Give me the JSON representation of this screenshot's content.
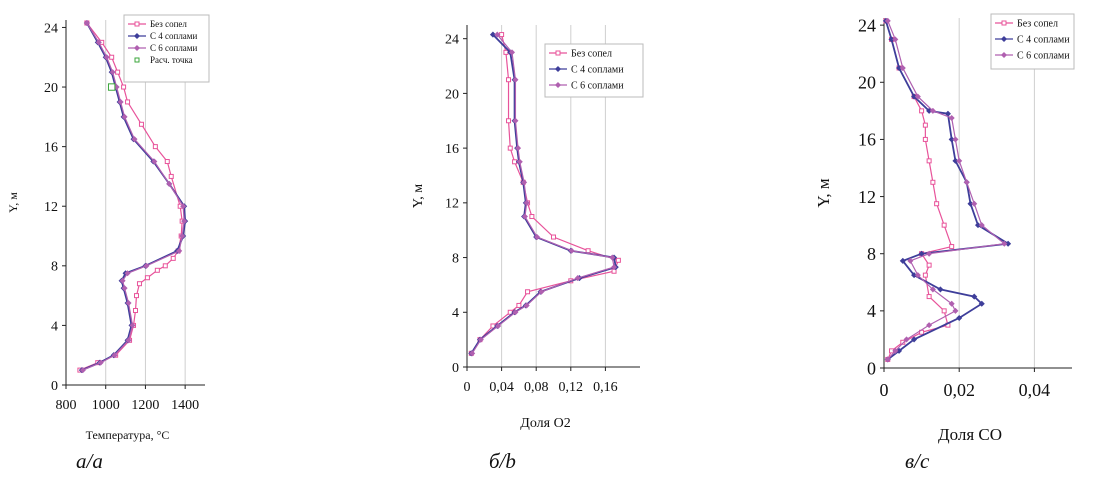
{
  "chart_data": [
    {
      "type": "line",
      "panel": "a",
      "caption": "а/a",
      "xlabel": "Температура, °С",
      "ylabel": "Y, м",
      "xlim": [
        800,
        1500
      ],
      "ylim": [
        0,
        24.5
      ],
      "xticks": [
        800,
        1000,
        1200,
        1400
      ],
      "yticks": [
        0,
        4,
        8,
        12,
        16,
        20,
        24
      ],
      "xtick_labels": [
        "800",
        "1000",
        "1200",
        "1400"
      ],
      "ytick_labels": [
        "0",
        "4",
        "8",
        "12",
        "16",
        "20",
        "24"
      ],
      "grid": "vertical",
      "legend_position": "top-right",
      "series": [
        {
          "name": "Без сопел",
          "color": "#e8539a",
          "marker": "square-open",
          "x": [
            905,
            980,
            1030,
            1060,
            1090,
            1110,
            1180,
            1250,
            1310,
            1330,
            1375,
            1385,
            1380,
            1365,
            1340,
            1300,
            1260,
            1210,
            1170,
            1155,
            1150,
            1140,
            1120,
            1050,
            960,
            870
          ],
          "y": [
            24.3,
            23.0,
            22.0,
            21.0,
            20.0,
            19.0,
            17.5,
            16.0,
            15.0,
            14.0,
            12.0,
            11.0,
            10.0,
            9.0,
            8.5,
            8.0,
            7.7,
            7.2,
            6.8,
            6.0,
            5.0,
            4.0,
            3.0,
            2.0,
            1.5,
            1.0
          ]
        },
        {
          "name": "С 4 соплами",
          "color": "#3e3e9a",
          "marker": "diamond-filled",
          "x": [
            905,
            960,
            1000,
            1030,
            1050,
            1070,
            1090,
            1140,
            1240,
            1320,
            1395,
            1400,
            1390,
            1360,
            1200,
            1100,
            1080,
            1090,
            1110,
            1130,
            1110,
            1040,
            970,
            880
          ],
          "y": [
            24.3,
            23.0,
            22.0,
            21.0,
            20.0,
            19.0,
            18.0,
            16.5,
            15.0,
            13.5,
            12.0,
            11.0,
            10.0,
            9.0,
            8.0,
            7.5,
            7.0,
            6.5,
            5.5,
            4.0,
            3.0,
            2.0,
            1.5,
            1.0
          ]
        },
        {
          "name": "С 6 соплами",
          "color": "#b060b0",
          "marker": "diamond-filled",
          "x": [
            905,
            965,
            1005,
            1035,
            1055,
            1075,
            1095,
            1145,
            1245,
            1320,
            1390,
            1395,
            1385,
            1370,
            1205,
            1110,
            1085,
            1095,
            1115,
            1135,
            1115,
            1045,
            975,
            885
          ],
          "y": [
            24.3,
            23.0,
            22.0,
            21.0,
            20.0,
            19.0,
            18.0,
            16.5,
            15.0,
            13.5,
            12.0,
            11.0,
            10.0,
            9.0,
            8.0,
            7.5,
            7.0,
            6.5,
            5.5,
            4.0,
            3.0,
            2.0,
            1.5,
            1.0
          ]
        },
        {
          "name": "Расч. точка",
          "color": "#3aa63a",
          "marker": "square-open",
          "style": "points",
          "x": [
            1030
          ],
          "y": [
            20.0
          ]
        }
      ]
    },
    {
      "type": "line",
      "panel": "b",
      "caption": "б/b",
      "xlabel": "Доля О2",
      "ylabel": "Y, м",
      "xlim": [
        0,
        0.2
      ],
      "ylim": [
        0,
        25
      ],
      "xticks": [
        0,
        0.04,
        0.08,
        0.12,
        0.16
      ],
      "yticks": [
        0,
        4,
        8,
        12,
        16,
        20,
        24
      ],
      "xtick_labels": [
        "0",
        "0,04",
        "0,08",
        "0,12",
        "0,16"
      ],
      "ytick_labels": [
        "0",
        "4",
        "8",
        "12",
        "16",
        "20",
        "24"
      ],
      "grid": "vertical",
      "legend_position": "top-right",
      "series": [
        {
          "name": "Без сопел",
          "color": "#e8539a",
          "marker": "square-open",
          "x": [
            0.04,
            0.045,
            0.048,
            0.048,
            0.05,
            0.055,
            0.065,
            0.07,
            0.075,
            0.1,
            0.14,
            0.175,
            0.17,
            0.12,
            0.07,
            0.06,
            0.05,
            0.03,
            0.015,
            0.005
          ],
          "y": [
            24.3,
            23.0,
            21.0,
            18.0,
            16.0,
            15.0,
            13.5,
            12.0,
            11.0,
            9.5,
            8.5,
            7.8,
            7.0,
            6.3,
            5.5,
            4.5,
            4.0,
            3.0,
            2.0,
            1.0
          ]
        },
        {
          "name": "С 4 соплами",
          "color": "#3e3e9a",
          "marker": "diamond-filled",
          "x": [
            0.03,
            0.05,
            0.055,
            0.055,
            0.058,
            0.06,
            0.065,
            0.068,
            0.066,
            0.08,
            0.12,
            0.17,
            0.172,
            0.13,
            0.085,
            0.068,
            0.055,
            0.035,
            0.015,
            0.005
          ],
          "y": [
            24.3,
            23.0,
            21.0,
            18.0,
            16.0,
            15.0,
            13.5,
            12.0,
            11.0,
            9.5,
            8.5,
            8.0,
            7.3,
            6.5,
            5.5,
            4.5,
            4.0,
            3.0,
            2.0,
            1.0
          ]
        },
        {
          "name": "С 6 соплами",
          "color": "#b060b0",
          "marker": "diamond-filled",
          "x": [
            0.035,
            0.052,
            0.056,
            0.056,
            0.059,
            0.061,
            0.066,
            0.069,
            0.067,
            0.081,
            0.121,
            0.168,
            0.17,
            0.128,
            0.086,
            0.069,
            0.056,
            0.036,
            0.016,
            0.006
          ],
          "y": [
            24.3,
            23.0,
            21.0,
            18.0,
            16.0,
            15.0,
            13.5,
            12.0,
            11.0,
            9.5,
            8.5,
            8.0,
            7.3,
            6.5,
            5.5,
            4.5,
            4.0,
            3.0,
            2.0,
            1.0
          ]
        }
      ]
    },
    {
      "type": "line",
      "panel": "c",
      "caption": "в/c",
      "xlabel": "Доля СО",
      "ylabel": "Y, м",
      "xlim": [
        0,
        0.05
      ],
      "ylim": [
        0,
        24.5
      ],
      "xticks": [
        0,
        0.02,
        0.04
      ],
      "yticks": [
        0,
        4,
        8,
        12,
        16,
        20,
        24
      ],
      "xtick_labels": [
        "0",
        "0,02",
        "0,04"
      ],
      "ytick_labels": [
        "0",
        "4",
        "8",
        "12",
        "16",
        "20",
        "24"
      ],
      "grid": "vertical",
      "legend_position": "top-right",
      "series": [
        {
          "name": "Без сопел",
          "color": "#e8539a",
          "marker": "square-open",
          "x": [
            0.0005,
            0.002,
            0.004,
            0.008,
            0.01,
            0.011,
            0.011,
            0.012,
            0.013,
            0.014,
            0.016,
            0.018,
            0.01,
            0.012,
            0.011,
            0.012,
            0.016,
            0.017,
            0.01,
            0.005,
            0.002,
            0.001
          ],
          "y": [
            24.3,
            23.0,
            21.0,
            19.0,
            18.0,
            17.0,
            16.0,
            14.5,
            13.0,
            11.5,
            10.0,
            8.5,
            8.0,
            7.2,
            6.5,
            5.0,
            4.0,
            3.0,
            2.5,
            1.8,
            1.2,
            0.6
          ]
        },
        {
          "name": "С 4 соплами",
          "color": "#3e3e9a",
          "marker": "diamond-filled",
          "x": [
            0.0005,
            0.002,
            0.004,
            0.008,
            0.012,
            0.017,
            0.018,
            0.019,
            0.022,
            0.023,
            0.025,
            0.033,
            0.01,
            0.005,
            0.008,
            0.015,
            0.024,
            0.026,
            0.02,
            0.008,
            0.004,
            0.001
          ],
          "y": [
            24.3,
            23.0,
            21.0,
            19.0,
            18.0,
            17.8,
            16.0,
            14.5,
            13.0,
            11.5,
            10.0,
            8.7,
            8.0,
            7.5,
            6.5,
            5.5,
            5.0,
            4.5,
            3.5,
            2.0,
            1.2,
            0.6
          ]
        },
        {
          "name": "С 6 соплами",
          "color": "#b060b0",
          "marker": "diamond-filled",
          "x": [
            0.001,
            0.003,
            0.005,
            0.009,
            0.013,
            0.018,
            0.019,
            0.02,
            0.022,
            0.024,
            0.026,
            0.032,
            0.012,
            0.007,
            0.009,
            0.013,
            0.018,
            0.019,
            0.012,
            0.006,
            0.003,
            0.001
          ],
          "y": [
            24.3,
            23.0,
            21.0,
            19.0,
            18.0,
            17.5,
            16.0,
            14.5,
            13.0,
            11.5,
            10.0,
            8.7,
            8.0,
            7.5,
            6.5,
            5.5,
            4.5,
            4.0,
            3.0,
            2.0,
            1.2,
            0.6
          ]
        }
      ]
    }
  ]
}
